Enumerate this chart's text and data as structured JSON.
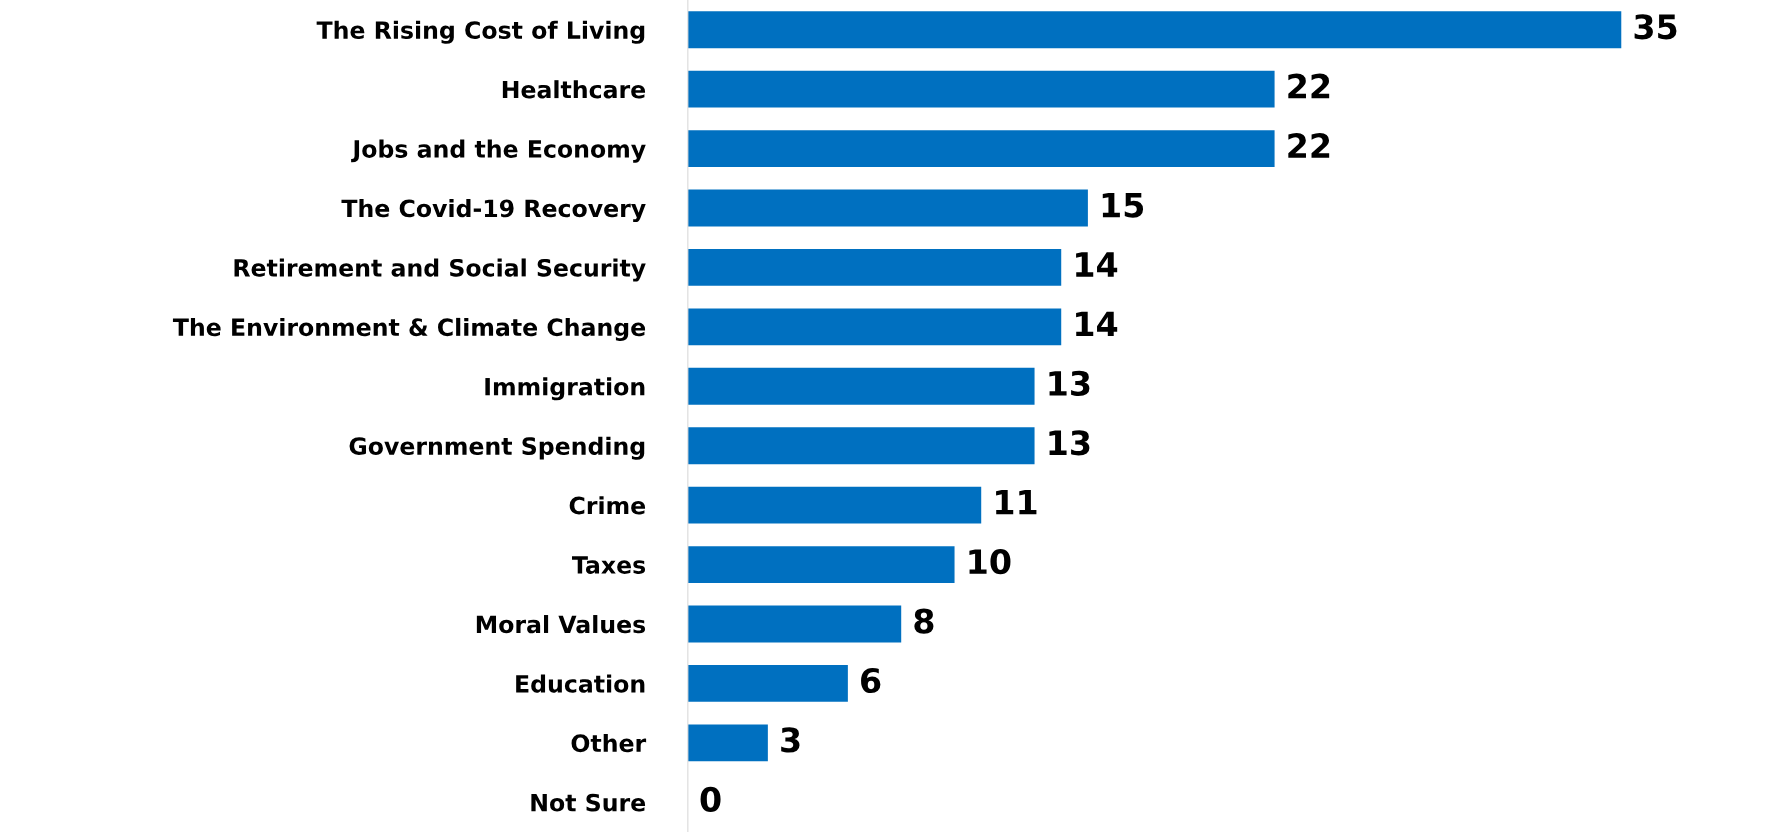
{
  "chart_data": {
    "type": "bar",
    "orientation": "horizontal",
    "categories": [
      "The Rising Cost of Living",
      "Healthcare",
      "Jobs and the Economy",
      "The Covid-19 Recovery",
      "Retirement and Social Security",
      "The Environment & Climate Change",
      "Immigration",
      "Government Spending",
      "Crime",
      "Taxes",
      "Moral Values",
      "Education",
      "Other",
      "Not Sure"
    ],
    "values": [
      35,
      22,
      22,
      15,
      14,
      14,
      13,
      13,
      11,
      10,
      8,
      6,
      3,
      0
    ],
    "color": "#0070c0",
    "data_labels": true,
    "grid": false,
    "legend": false
  }
}
